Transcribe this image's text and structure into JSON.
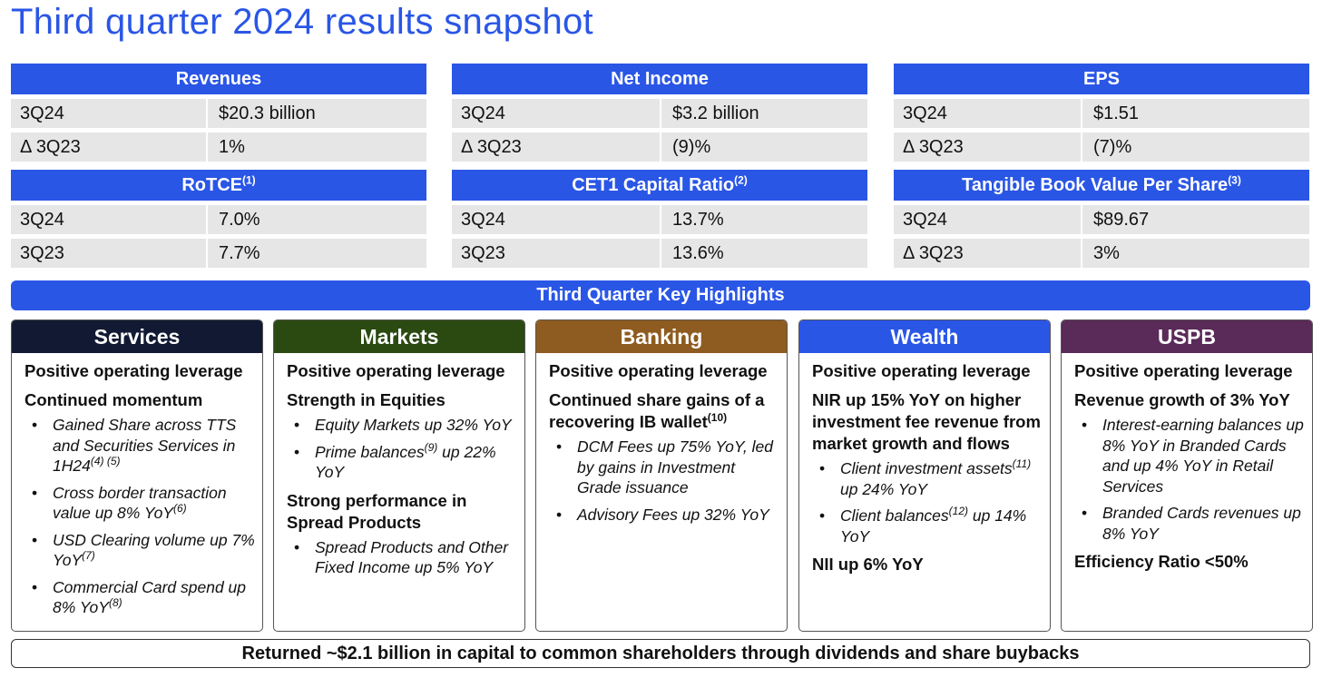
{
  "title": "Third quarter 2024 results snapshot",
  "metrics": [
    {
      "label": "Revenues",
      "note": "",
      "rows": [
        {
          "k": "3Q24",
          "v": "$20.3 billion"
        },
        {
          "k": "Δ 3Q23",
          "v": "1%"
        }
      ]
    },
    {
      "label": "Net Income",
      "note": "",
      "rows": [
        {
          "k": "3Q24",
          "v": "$3.2 billion"
        },
        {
          "k": "Δ 3Q23",
          "v": "(9)%"
        }
      ]
    },
    {
      "label": "EPS",
      "note": "",
      "rows": [
        {
          "k": "3Q24",
          "v": "$1.51"
        },
        {
          "k": "Δ 3Q23",
          "v": "(7)%"
        }
      ]
    },
    {
      "label": "RoTCE",
      "note": "(1)",
      "rows": [
        {
          "k": "3Q24",
          "v": "7.0%"
        },
        {
          "k": "3Q23",
          "v": "7.7%"
        }
      ]
    },
    {
      "label": "CET1 Capital Ratio",
      "note": "(2)",
      "rows": [
        {
          "k": "3Q24",
          "v": "13.7%"
        },
        {
          "k": "3Q23",
          "v": "13.6%"
        }
      ]
    },
    {
      "label": "Tangible Book Value Per Share",
      "note": "(3)",
      "rows": [
        {
          "k": "3Q24",
          "v": "$89.67"
        },
        {
          "k": "Δ 3Q23",
          "v": "3%"
        }
      ]
    }
  ],
  "key_highlights_label": "Third Quarter Key Highlights",
  "colors": {
    "accent": "#2a56e6",
    "services": "#121a33",
    "markets": "#2b4a12",
    "banking": "#8e5c20",
    "wealth": "#2a56e6",
    "uspb": "#5a2a58"
  },
  "segments": [
    {
      "name": "Services",
      "blocks": [
        {
          "heading": "Positive operating leverage",
          "bullets": []
        },
        {
          "heading": "Continued momentum",
          "bullets": [
            {
              "text": "Gained Share across TTS and Securities Services in 1H24",
              "note": "(4) (5)"
            },
            {
              "text": "Cross border transaction value up 8% YoY",
              "note": "(6)"
            },
            {
              "text": "USD Clearing volume up 7% YoY",
              "note": "(7)"
            },
            {
              "text": "Commercial Card spend up 8% YoY",
              "note": "(8)"
            }
          ]
        }
      ]
    },
    {
      "name": "Markets",
      "blocks": [
        {
          "heading": "Positive operating leverage",
          "bullets": []
        },
        {
          "heading": "Strength in Equities",
          "bullets": [
            {
              "text": "Equity Markets up 32% YoY",
              "note": ""
            },
            {
              "text": "Prime balances",
              "note": "(9)",
              "after": " up 22% YoY"
            }
          ]
        },
        {
          "heading": "Strong performance in Spread Products",
          "bullets": [
            {
              "text": "Spread Products and Other Fixed Income up 5% YoY",
              "note": ""
            }
          ]
        }
      ]
    },
    {
      "name": "Banking",
      "blocks": [
        {
          "heading": "Positive operating leverage",
          "bullets": []
        },
        {
          "heading": "Continued share gains of a recovering IB wallet",
          "note": "(10)",
          "bullets": [
            {
              "text": "DCM Fees up 75% YoY, led by gains in Investment Grade issuance",
              "note": ""
            },
            {
              "text": "Advisory Fees up 32% YoY",
              "note": ""
            }
          ]
        }
      ]
    },
    {
      "name": "Wealth",
      "blocks": [
        {
          "heading": "Positive operating leverage",
          "bullets": []
        },
        {
          "heading": "NIR up 15% YoY on higher investment fee revenue from market growth and flows",
          "bullets": [
            {
              "text": "Client investment assets",
              "note": "(11)",
              "after": " up 24% YoY"
            },
            {
              "text": "Client balances",
              "note": "(12)",
              "after": " up 14% YoY"
            }
          ]
        },
        {
          "heading": "NII up 6% YoY",
          "bullets": []
        }
      ]
    },
    {
      "name": "USPB",
      "blocks": [
        {
          "heading": "Positive operating leverage",
          "bullets": []
        },
        {
          "heading": "Revenue growth of 3% YoY",
          "bullets": [
            {
              "text": "Interest-earning balances up 8% YoY in Branded Cards and up 4% YoY in Retail Services",
              "note": ""
            },
            {
              "text": "Branded Cards revenues up 8% YoY",
              "note": ""
            }
          ]
        },
        {
          "heading": "Efficiency Ratio <50%",
          "bullets": []
        }
      ]
    }
  ],
  "footer": "Returned ~$2.1 billion in capital to common shareholders through dividends and share buybacks"
}
